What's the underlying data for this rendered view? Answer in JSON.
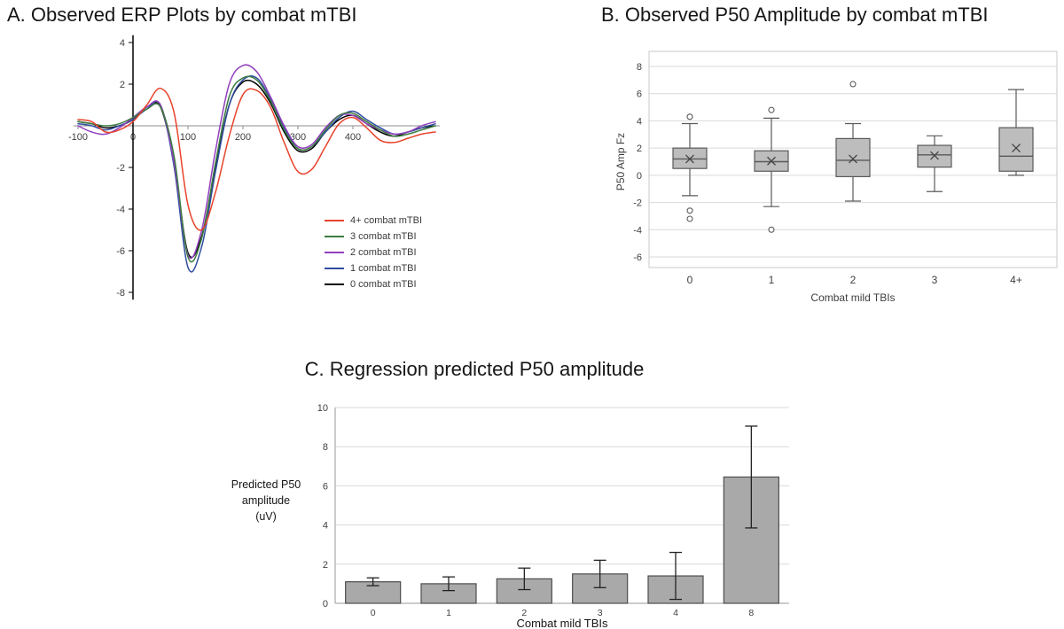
{
  "page": {
    "background": "#ffffff"
  },
  "panel_a": {
    "title": "A. Observed ERP Plots by combat mTBI"
  },
  "panel_b": {
    "title": "B. Observed P50 Amplitude by combat mTBI"
  },
  "panel_c": {
    "title": "C. Regression predicted P50 amplitude"
  },
  "chart_data": [
    {
      "id": "erp",
      "type": "line",
      "title": "A. Observed ERP Plots by combat mTBI",
      "xlabel": "",
      "ylabel": "",
      "xlim": [
        -100,
        550
      ],
      "ylim": [
        -8,
        4
      ],
      "x_ticks": [
        -100,
        0,
        100,
        200,
        300,
        400
      ],
      "y_ticks": [
        4,
        2,
        -2,
        -4,
        -6,
        -8
      ],
      "grid": false,
      "legend_position": "right-middle",
      "x": [
        -100,
        -75,
        -50,
        -25,
        0,
        25,
        50,
        75,
        100,
        125,
        150,
        175,
        200,
        225,
        250,
        275,
        300,
        325,
        350,
        375,
        400,
        425,
        450,
        475,
        500,
        525,
        550
      ],
      "series": [
        {
          "name": "4+ combat mTBI",
          "color": "#e8432b",
          "values": [
            0.3,
            0.2,
            -0.3,
            -0.2,
            0.2,
            1.0,
            1.8,
            0.6,
            -3.8,
            -5.0,
            -3.2,
            -0.5,
            1.5,
            1.7,
            0.9,
            -0.8,
            -2.2,
            -2.1,
            -1.0,
            0.1,
            0.4,
            -0.1,
            -0.7,
            -0.8,
            -0.6,
            -0.4,
            -0.3
          ]
        },
        {
          "name": "3 combat mTBI",
          "color": "#3e7c41",
          "values": [
            0.2,
            0.1,
            0.0,
            0.1,
            0.4,
            0.8,
            0.9,
            -1.5,
            -6.3,
            -5.4,
            -1.8,
            1.4,
            2.3,
            2.2,
            1.2,
            -0.2,
            -1.1,
            -1.0,
            -0.2,
            0.5,
            0.6,
            0.2,
            -0.2,
            -0.5,
            -0.4,
            -0.2,
            0.0
          ]
        },
        {
          "name": "2 combat mTBI",
          "color": "#9340bf",
          "values": [
            0.0,
            -0.3,
            -0.4,
            -0.1,
            0.4,
            0.9,
            1.0,
            -1.8,
            -6.2,
            -5.0,
            -1.2,
            2.0,
            2.9,
            2.6,
            1.4,
            0.0,
            -1.0,
            -0.9,
            -0.1,
            0.5,
            0.5,
            0.1,
            -0.2,
            -0.4,
            -0.3,
            0.0,
            0.2
          ]
        },
        {
          "name": "1 combat mTBI",
          "color": "#2f4da0",
          "values": [
            0.1,
            0.0,
            -0.2,
            0.0,
            0.3,
            0.8,
            1.0,
            -2.0,
            -6.8,
            -5.8,
            -2.2,
            1.0,
            2.2,
            2.3,
            1.3,
            -0.1,
            -1.1,
            -1.0,
            -0.3,
            0.4,
            0.7,
            0.3,
            -0.1,
            -0.4,
            -0.3,
            -0.1,
            0.1
          ]
        },
        {
          "name": "0 combat mTBI",
          "color": "#000000",
          "values": [
            0.2,
            0.1,
            -0.1,
            0.0,
            0.3,
            0.9,
            0.9,
            -1.8,
            -6.1,
            -5.3,
            -2.0,
            1.0,
            2.1,
            2.0,
            1.1,
            -0.3,
            -1.2,
            -1.1,
            -0.3,
            0.3,
            0.5,
            0.1,
            -0.3,
            -0.5,
            -0.3,
            -0.1,
            0.0
          ]
        }
      ]
    },
    {
      "id": "box",
      "type": "box",
      "title": "B. Observed P50 Amplitude by combat mTBI",
      "xlabel": "Combat mild TBIs",
      "ylabel": "P50 Amp Fz",
      "ylim": [
        -6,
        8
      ],
      "y_tick_step": 2,
      "grid": true,
      "categories": [
        "0",
        "1",
        "2",
        "3",
        "4+"
      ],
      "boxes": [
        {
          "whisker_low": -1.5,
          "q1": 0.5,
          "median": 1.2,
          "q3": 2.0,
          "whisker_high": 3.8,
          "mean": 1.2,
          "outliers": [
            4.3,
            -2.6,
            -3.2
          ]
        },
        {
          "whisker_low": -2.3,
          "q1": 0.3,
          "median": 1.0,
          "q3": 1.8,
          "whisker_high": 4.2,
          "mean": 1.05,
          "outliers": [
            4.8,
            -4.0
          ]
        },
        {
          "whisker_low": -1.9,
          "q1": -0.1,
          "median": 1.1,
          "q3": 2.7,
          "whisker_high": 3.8,
          "mean": 1.2,
          "outliers": [
            6.7
          ]
        },
        {
          "whisker_low": -1.2,
          "q1": 0.6,
          "median": 1.5,
          "q3": 2.2,
          "whisker_high": 2.9,
          "mean": 1.45,
          "outliers": []
        },
        {
          "whisker_low": 0.0,
          "q1": 0.3,
          "median": 1.4,
          "q3": 3.5,
          "whisker_high": 6.3,
          "mean": 2.0,
          "outliers": []
        }
      ],
      "box_fill": "#bdbdbd",
      "box_stroke": "#595959",
      "grid_color": "#d9d9d9",
      "frame_color": "#c8c8c8"
    },
    {
      "id": "bar",
      "type": "bar",
      "title": "C. Regression predicted P50 amplitude",
      "xlabel": "Combat mild TBIs",
      "ylabel": "Predicted P50\namplitude\n(uV)",
      "ylim": [
        0,
        10
      ],
      "y_tick_step": 2,
      "grid": true,
      "categories": [
        "0",
        "1",
        "2",
        "3",
        "4",
        "8"
      ],
      "values": [
        1.1,
        1.0,
        1.25,
        1.5,
        1.4,
        6.45
      ],
      "error_low": [
        0.9,
        0.65,
        0.7,
        0.8,
        0.2,
        3.85
      ],
      "error_high": [
        1.3,
        1.35,
        1.8,
        2.2,
        2.6,
        9.05
      ],
      "bar_fill": "#a9a9a9",
      "bar_stroke": "#4d4d4d",
      "grid_color": "#d9d9d9",
      "axis_color": "#9a9a9a"
    }
  ]
}
